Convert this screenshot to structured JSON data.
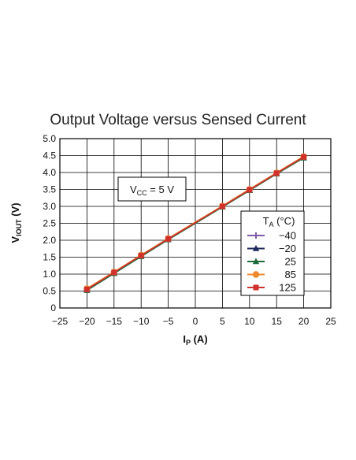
{
  "chart_data": {
    "type": "line",
    "title": "Output Voltage versus Sensed Current",
    "xlabel": {
      "main": "I",
      "sub": "P",
      "unit": " (A)"
    },
    "ylabel": {
      "main": "V",
      "sub": "IOUT",
      "unit": " (V)"
    },
    "xlim": [
      -25,
      25
    ],
    "ylim": [
      0,
      5.0
    ],
    "xticks": [
      "−25",
      "−20",
      "−15",
      "−10",
      "−5",
      "0",
      "5",
      "10",
      "15",
      "20",
      "25"
    ],
    "yticks": [
      "0",
      "0.5",
      "1.0",
      "1.5",
      "2.0",
      "2.5",
      "3.0",
      "3.5",
      "4.0",
      "4.5",
      "5.0"
    ],
    "grid": true,
    "annotation": {
      "main": "V",
      "sub": "CC",
      "rest": " = 5 V"
    },
    "legend_title": {
      "main": "T",
      "sub": "A",
      "rest": " (°C)"
    },
    "legend_position": "lower-right",
    "x": [
      -20,
      -15,
      -10,
      -5,
      5,
      10,
      15,
      20
    ],
    "series": [
      {
        "name": "−40",
        "color": "#7d5ba6",
        "marker": "star",
        "values": [
          0.54,
          1.04,
          1.54,
          2.03,
          3.0,
          3.49,
          3.98,
          4.45
        ]
      },
      {
        "name": "−20",
        "color": "#1f2a5c",
        "marker": "triangle",
        "values": [
          0.53,
          1.03,
          1.53,
          2.02,
          2.99,
          3.48,
          3.97,
          4.44
        ]
      },
      {
        "name": "25",
        "color": "#1f6b3a",
        "marker": "triangle",
        "values": [
          0.52,
          1.02,
          1.52,
          2.02,
          2.98,
          3.47,
          3.96,
          4.43
        ]
      },
      {
        "name": "85",
        "color": "#f08a2c",
        "marker": "circle",
        "values": [
          0.57,
          1.06,
          1.56,
          2.05,
          3.01,
          3.5,
          3.99,
          4.47
        ]
      },
      {
        "name": "125",
        "color": "#d0312d",
        "marker": "square",
        "values": [
          0.55,
          1.05,
          1.55,
          2.04,
          3.0,
          3.49,
          3.98,
          4.46
        ]
      }
    ]
  }
}
